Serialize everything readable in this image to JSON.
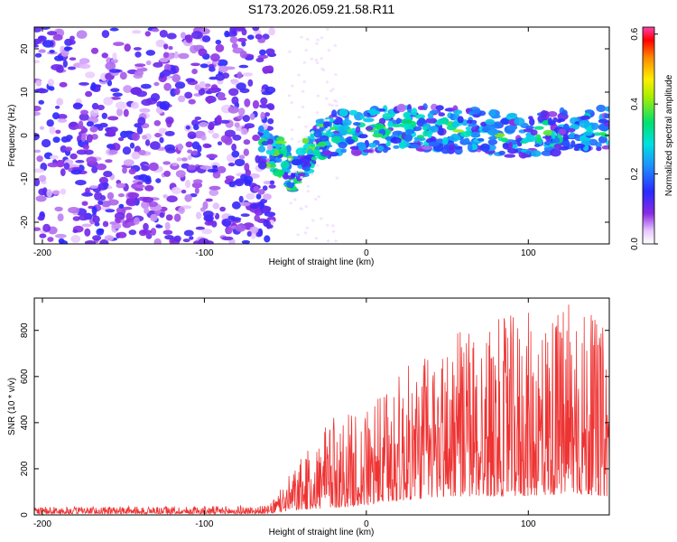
{
  "title": "S173.2026.059.21.58.R11",
  "chart_data": [
    {
      "type": "heatmap",
      "xlabel": "Height of straight line (km)",
      "ylabel": "Frequency (Hz)",
      "xlim": [
        -205,
        150
      ],
      "ylim": [
        -25,
        25
      ],
      "xticks": [
        -200,
        -100,
        0,
        100
      ],
      "yticks": [
        -20,
        -10,
        0,
        10,
        20
      ],
      "colorbar": {
        "label": "Normalized spectral amplitude",
        "range": [
          0,
          0.62
        ],
        "ticks": [
          0.0,
          0.2,
          0.4,
          0.6
        ]
      },
      "regions": [
        {
          "name": "noise",
          "x_range": [
            -205,
            -60
          ],
          "freq_range": [
            -25,
            25
          ],
          "amplitude": 0.1
        },
        {
          "name": "signal-dip",
          "x_range": [
            -65,
            -25
          ],
          "freq_center": -7,
          "amplitude": 0.25
        },
        {
          "name": "signal-band",
          "x_range": [
            -25,
            150
          ],
          "freq_center": 1,
          "freq_halfwidth": 5,
          "amplitude": 0.3
        }
      ]
    },
    {
      "type": "line",
      "series": [
        {
          "name": "SNR",
          "color": "#ee3333"
        }
      ],
      "xlabel": "Height of straight line (km)",
      "ylabel": "SNR (10 * v/v)",
      "xlim": [
        -205,
        150
      ],
      "ylim": [
        0,
        940
      ],
      "xticks": [
        -200,
        -100,
        0,
        100
      ],
      "yticks": [
        0,
        200,
        400,
        600,
        800
      ],
      "envelope": [
        {
          "x": -205,
          "base": 5,
          "peak": 35
        },
        {
          "x": -60,
          "base": 5,
          "peak": 40
        },
        {
          "x": -45,
          "base": 20,
          "peak": 200
        },
        {
          "x": -20,
          "base": 30,
          "peak": 430
        },
        {
          "x": 0,
          "base": 40,
          "peak": 450
        },
        {
          "x": 20,
          "base": 60,
          "peak": 620
        },
        {
          "x": 50,
          "base": 80,
          "peak": 780
        },
        {
          "x": 90,
          "base": 80,
          "peak": 870
        },
        {
          "x": 130,
          "base": 90,
          "peak": 930
        },
        {
          "x": 150,
          "base": 80,
          "peak": 800
        }
      ]
    }
  ]
}
